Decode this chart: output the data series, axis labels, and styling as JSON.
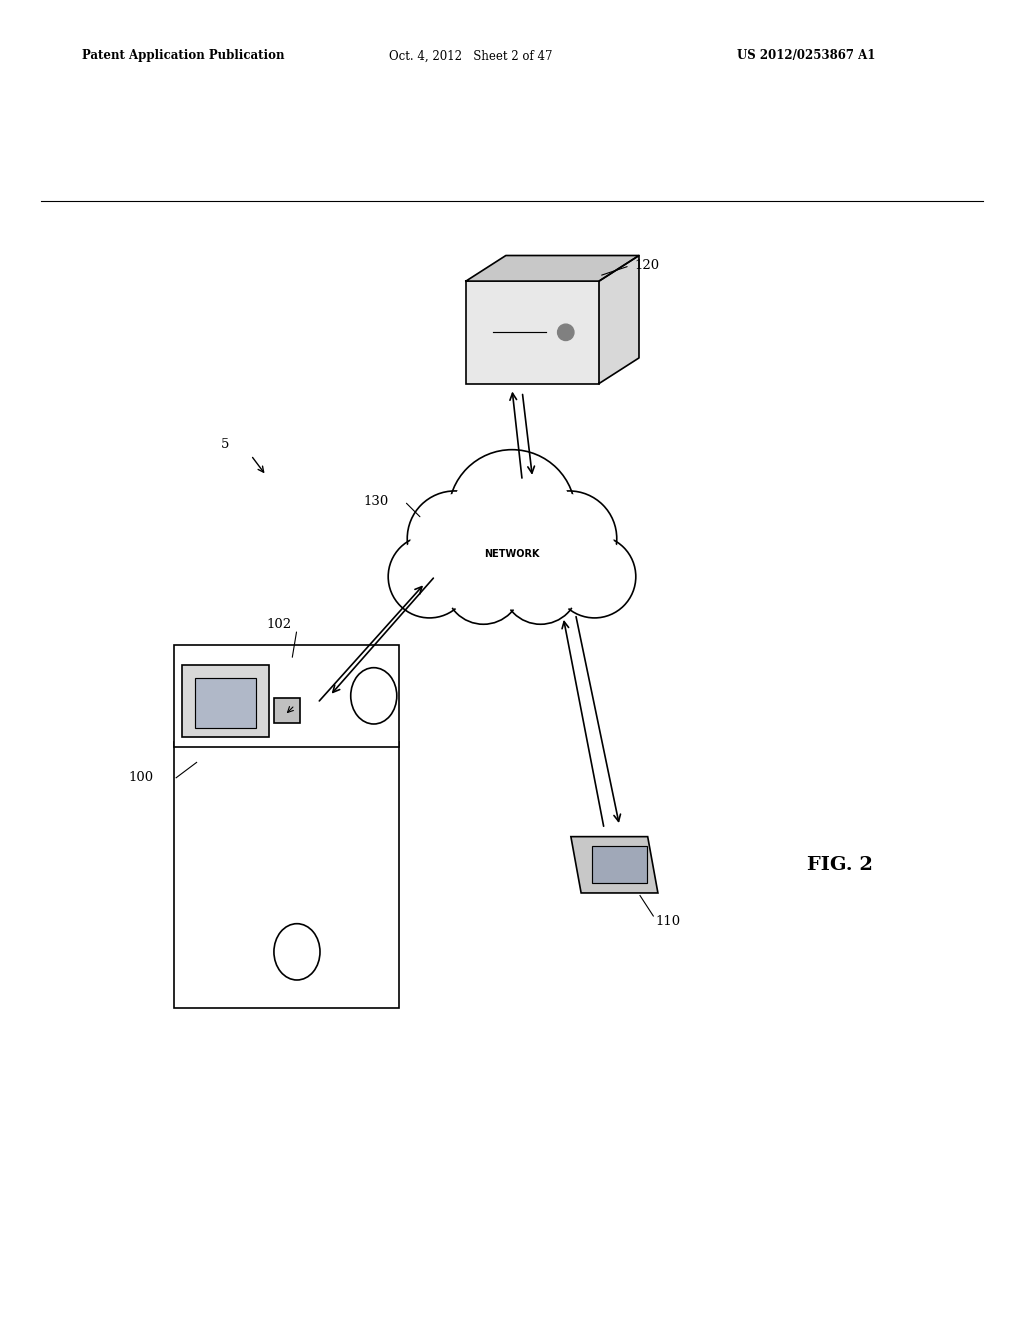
{
  "title_left": "Patent Application Publication",
  "title_mid": "Oct. 4, 2012   Sheet 2 of 47",
  "title_right": "US 2012/0253867 A1",
  "fig_label": "FIG. 2",
  "bg_color": "#ffffff",
  "line_color": "#000000",
  "label_5": "5",
  "label_100": "100",
  "label_102": "102",
  "label_110": "110",
  "label_120": "120",
  "label_130": "130",
  "network_text": "NETWORK"
}
